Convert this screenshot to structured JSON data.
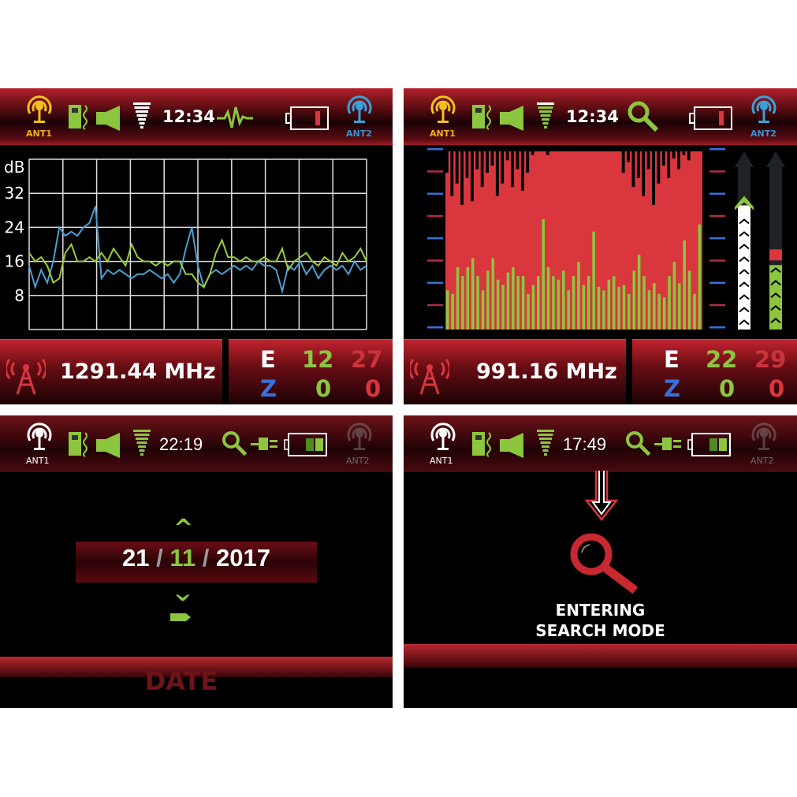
{
  "panels": [
    {
      "header": {
        "ant1": "ANT1",
        "ant2": "ANT2",
        "time": "12:34",
        "mode_icon": "waveform-icon",
        "battery": "low"
      },
      "footer": {
        "frequency": "1291.44 MHz",
        "e_label": "E",
        "z_label": "Z",
        "e_green": "12",
        "e_red": "27",
        "z_green": "0",
        "z_red": "0"
      }
    },
    {
      "header": {
        "ant1": "ANT1",
        "ant2": "ANT2",
        "time": "12:34",
        "mode_icon": "search-icon",
        "battery": "low"
      },
      "footer": {
        "frequency": "991.16 MHz",
        "e_label": "E",
        "z_label": "Z",
        "e_green": "22",
        "e_red": "29",
        "z_green": "0",
        "z_red": "0"
      }
    },
    {
      "header": {
        "ant1": "ANT1",
        "ant2": "ANT2",
        "time": "22:19",
        "mode_icon": "search-icon",
        "battery": "charging"
      },
      "date": {
        "day": "21",
        "sep": "/",
        "month": "11",
        "year": "2017",
        "up": "^",
        "down": "v"
      },
      "footer": {
        "label": "DATE"
      }
    },
    {
      "header": {
        "ant1": "ANT1",
        "ant2": "ANT2",
        "time": "17:49",
        "mode_icon": "search-icon",
        "battery": "charging"
      },
      "message": {
        "line1": "ENTERING",
        "line2": "SEARCH MODE"
      }
    }
  ],
  "colors": {
    "green": "#8cc63f",
    "red": "#d9363e",
    "blue": "#3a6fd8",
    "yellow": "#f0c020",
    "cyan": "#3aa0d8"
  },
  "chart_data": [
    {
      "type": "line",
      "ylabel": "dB",
      "yticks": [
        32,
        24,
        16,
        8
      ],
      "ylim": [
        0,
        40
      ],
      "grid": true,
      "series": [
        {
          "color": "#4a9fd0",
          "values": [
            15,
            10,
            14,
            11,
            16,
            24,
            22,
            23,
            22,
            24,
            25,
            29,
            12,
            14,
            13,
            14,
            13,
            12,
            13,
            13,
            14,
            13,
            12,
            13,
            11,
            13,
            19,
            24,
            15,
            10,
            13,
            14,
            13,
            14,
            15,
            14,
            15,
            14,
            16,
            15,
            15,
            14,
            9,
            15,
            14,
            16,
            13,
            15,
            12,
            14,
            15,
            14,
            15,
            13,
            16,
            14,
            15
          ]
        },
        {
          "color": "#9ccc3c",
          "values": [
            18,
            16,
            17,
            15,
            11,
            12,
            18,
            20,
            16,
            16,
            17,
            16,
            18,
            16,
            19,
            17,
            15,
            20,
            17,
            16,
            16,
            15,
            16,
            15,
            16,
            16,
            13,
            13,
            11,
            10,
            13,
            18,
            21,
            17,
            17,
            16,
            17,
            16,
            16,
            17,
            16,
            16,
            19,
            14,
            16,
            17,
            18,
            16,
            15,
            17,
            16,
            15,
            18,
            16,
            17,
            19,
            16
          ]
        }
      ]
    },
    {
      "type": "bar",
      "green": [
        0.22,
        0.2,
        0.35,
        0.3,
        0.35,
        0.4,
        0.3,
        0.22,
        0.33,
        0.4,
        0.28,
        0.25,
        0.32,
        0.35,
        0.3,
        0.3,
        0.2,
        0.25,
        0.3,
        0.62,
        0.35,
        0.3,
        0.28,
        0.33,
        0.22,
        0.3,
        0.38,
        0.25,
        0.3,
        0.55,
        0.24,
        0.22,
        0.28,
        0.3,
        0.24,
        0.25,
        0.2,
        0.33,
        0.42,
        0.3,
        0.22,
        0.26,
        0.2,
        0.18,
        0.3,
        0.38,
        0.26,
        0.5,
        0.33,
        0.2,
        0.59
      ],
      "black": [
        0.12,
        0.25,
        0.18,
        0.3,
        0.15,
        0.28,
        0.1,
        0.2,
        0.12,
        0.08,
        0.25,
        0.18,
        0.05,
        0.2,
        0.1,
        0.22,
        0.12,
        0.02,
        0.0,
        0.0,
        0.02,
        0.0,
        0.0,
        0.0,
        0.0,
        0.0,
        0.0,
        0.0,
        0.0,
        0.0,
        0.0,
        0.0,
        0.0,
        0.0,
        0.0,
        0.12,
        0.06,
        0.2,
        0.15,
        0.25,
        0.1,
        0.3,
        0.18,
        0.08,
        0.15,
        0.04,
        0.1,
        0.02,
        0.05,
        0.0,
        0.0
      ],
      "meter_levels": [
        0.75,
        0.45
      ]
    }
  ]
}
